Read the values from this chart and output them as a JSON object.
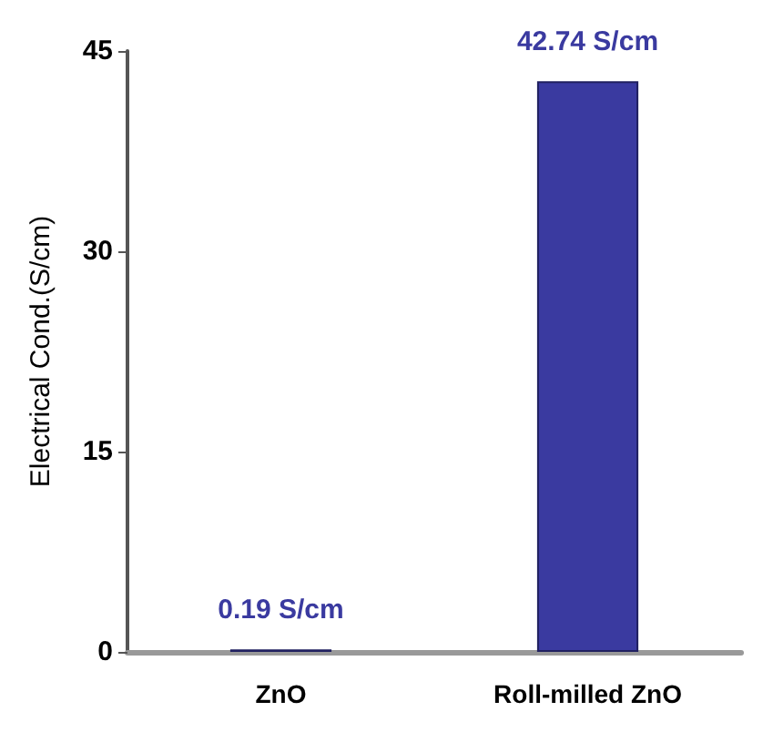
{
  "chart_data": {
    "type": "bar",
    "ylabel": "Electrical Cond.(S/cm)",
    "categories": [
      "ZnO",
      "Roll-milled ZnO"
    ],
    "values": [
      0.19,
      42.74
    ],
    "value_labels": [
      "0.19 S/cm",
      "42.74 S/cm"
    ],
    "color": "#3a3aa0",
    "ylim": [
      0,
      45
    ],
    "yticks": [
      0,
      15,
      30,
      45
    ],
    "grid": false
  }
}
